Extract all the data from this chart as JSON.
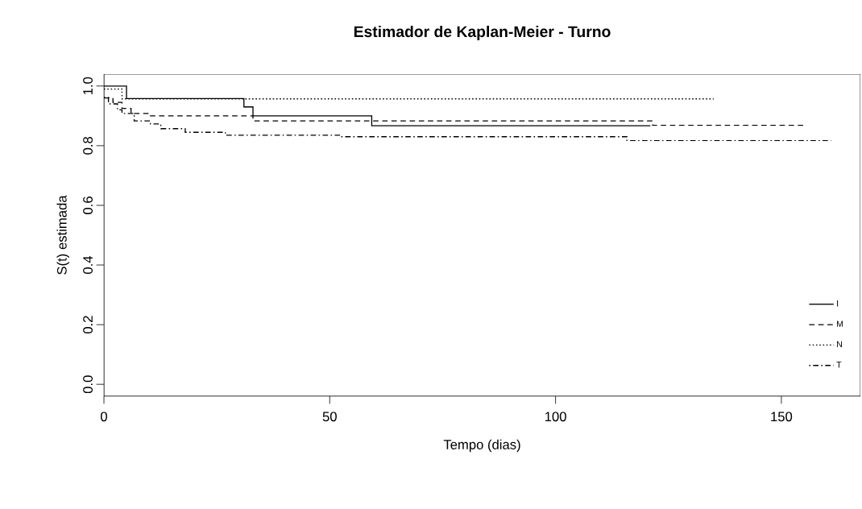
{
  "chart_data": {
    "type": "step",
    "title": "Estimador de Kaplan-Meier - Turno",
    "xlabel": "Tempo (dias)",
    "ylabel": "S(t) estimada",
    "xlim": [
      0,
      167.5
    ],
    "ylim": [
      -0.04,
      1.04
    ],
    "xticks": [
      0,
      50,
      100,
      150
    ],
    "yticks": [
      {
        "value": 0,
        "label": "0.0"
      },
      {
        "value": 0.2,
        "label": "0.2"
      },
      {
        "value": 0.4,
        "label": "0.4"
      },
      {
        "value": 0.6,
        "label": "0.6"
      },
      {
        "value": 0.8,
        "label": "0.8"
      },
      {
        "value": 1,
        "label": "1.0"
      }
    ],
    "legend": "bottom right",
    "grid": false,
    "series": [
      {
        "name": "I",
        "color": "#000000",
        "line_style": "solid",
        "x": [
          0,
          5,
          31,
          33,
          59.3,
          121
        ],
        "values": [
          1.0,
          0.958,
          0.93,
          0.9,
          0.867,
          0.867
        ]
      },
      {
        "name": "M",
        "color": "#000000",
        "line_style": "dashed",
        "x": [
          0,
          2,
          4,
          6,
          10,
          33,
          121.5,
          155
        ],
        "values": [
          0.96,
          0.945,
          0.925,
          0.908,
          0.9,
          0.883,
          0.868,
          0.868
        ]
      },
      {
        "name": "N",
        "color": "#000000",
        "line_style": "dotted",
        "x": [
          0,
          4,
          135
        ],
        "values": [
          0.99,
          0.957,
          0.957
        ]
      },
      {
        "name": "T",
        "color": "#000000",
        "line_style": "dashdot",
        "x": [
          0,
          1,
          3,
          4,
          6.7,
          10.3,
          12.6,
          18,
          26.9,
          52.3,
          115.8,
          161
        ],
        "values": [
          0.962,
          0.94,
          0.92,
          0.908,
          0.883,
          0.873,
          0.857,
          0.845,
          0.835,
          0.83,
          0.817,
          0.817
        ]
      }
    ]
  }
}
